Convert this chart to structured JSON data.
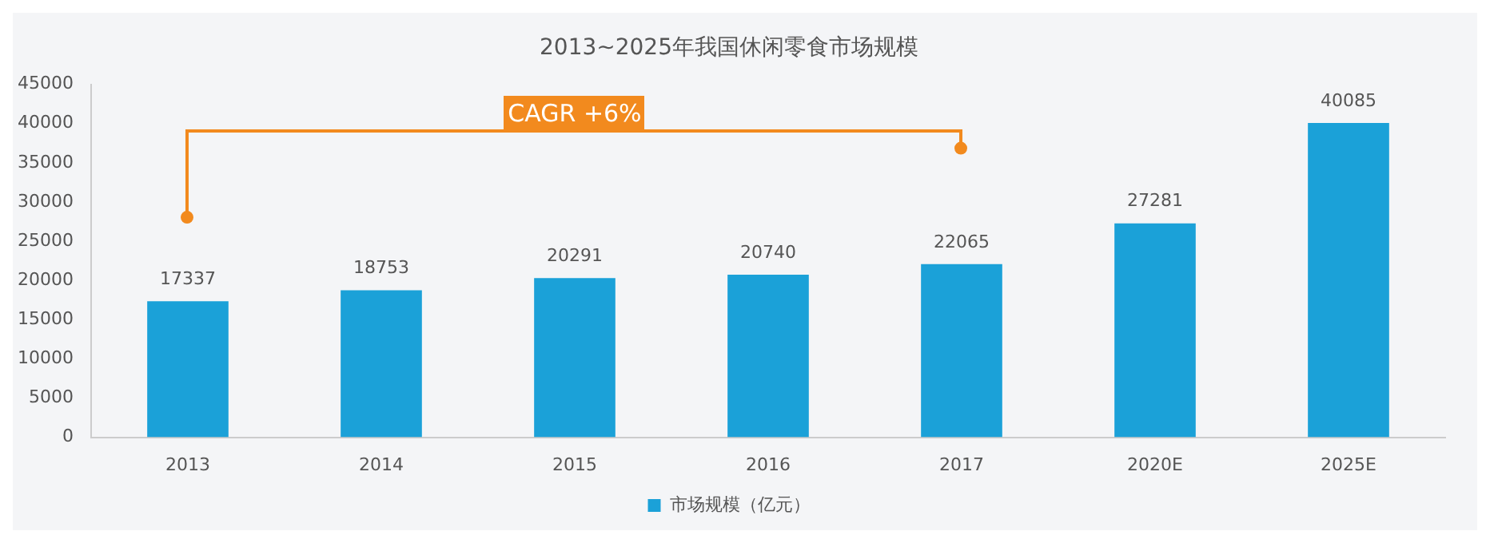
{
  "chart_data": {
    "type": "bar",
    "title": "2013~2025年我国休闲零食市场规模",
    "categories": [
      "2013",
      "2014",
      "2015",
      "2016",
      "2017",
      "2020E",
      "2025E"
    ],
    "series": [
      {
        "name": "市场规模（亿元）",
        "color": "#1ba1d8",
        "values": [
          17337,
          18753,
          20291,
          20740,
          22065,
          27281,
          40085
        ]
      }
    ],
    "ylim": [
      0,
      45000
    ],
    "yticks": [
      0,
      5000,
      10000,
      15000,
      20000,
      25000,
      30000,
      35000,
      40000,
      45000
    ],
    "grid": false,
    "legend": "bottom",
    "data_labels": true,
    "annotations": [
      "CAGR +6%"
    ]
  }
}
